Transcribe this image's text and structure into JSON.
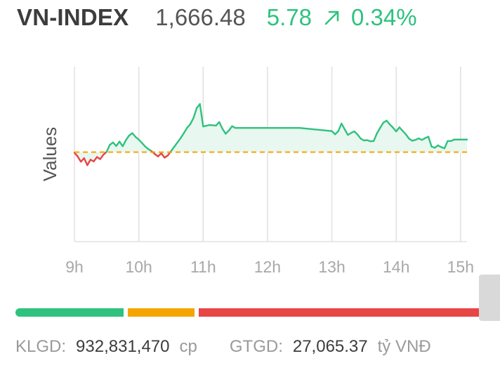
{
  "header": {
    "index_name": "VN-INDEX",
    "index_value": "1,666.48",
    "change": "5.78",
    "change_pct": "0.34%",
    "trend_icon": "arrow-up-right-icon"
  },
  "colors": {
    "up": "#2ec27e",
    "down": "#e84545",
    "reference": "#f5a500",
    "area_fill": "#e8f7ef",
    "grid": "#e0e0e0",
    "axis_text": "#a8a8a8"
  },
  "breadth": {
    "advancing_color": "#2ec27e",
    "unchanged_color": "#f5a500",
    "declining_color": "#e84545"
  },
  "chart_data": {
    "type": "line",
    "ylabel": "Values",
    "reference_value": 1660.7,
    "ylim": [
      1630,
      1690
    ],
    "x_ticks": [
      "9h",
      "10h",
      "11h",
      "12h",
      "13h",
      "14h",
      "15h"
    ],
    "x_tick_hours": [
      9,
      10,
      11,
      12,
      13,
      14,
      15
    ],
    "x_range": [
      9,
      15.1
    ],
    "grid": "vertical",
    "series": [
      {
        "x": [
          9.0,
          9.05,
          9.1,
          9.15,
          9.2,
          9.25,
          9.3,
          9.35,
          9.4,
          9.45,
          9.5,
          9.55,
          9.6,
          9.65,
          9.7,
          9.75,
          9.8,
          9.85,
          9.9,
          9.95,
          10.0,
          10.05,
          10.1,
          10.15,
          10.2,
          10.25,
          10.3,
          10.35,
          10.4,
          10.45,
          10.5,
          10.55,
          10.6,
          10.65,
          10.7,
          10.75,
          10.8,
          10.85,
          10.9,
          10.95,
          11.0,
          11.1,
          11.2,
          11.25,
          11.3,
          11.35,
          11.4,
          11.45,
          11.5,
          12.0,
          12.5,
          13.0,
          13.05,
          13.1,
          13.15,
          13.2,
          13.25,
          13.3,
          13.35,
          13.4,
          13.45,
          13.5,
          13.55,
          13.6,
          13.65,
          13.7,
          13.75,
          13.8,
          13.85,
          13.9,
          13.95,
          14.0,
          14.05,
          14.1,
          14.15,
          14.2,
          14.25,
          14.3,
          14.35,
          14.4,
          14.45,
          14.5,
          14.55,
          14.6,
          14.65,
          14.7,
          14.75,
          14.8,
          14.85,
          14.9,
          15.1
        ],
        "y": [
          1660.5,
          1659.2,
          1657.4,
          1658.6,
          1656.2,
          1658.1,
          1657.5,
          1659.0,
          1658.3,
          1659.8,
          1660.8,
          1663.2,
          1664.0,
          1662.8,
          1664.3,
          1662.7,
          1664.8,
          1666.4,
          1667.2,
          1665.9,
          1665.0,
          1663.8,
          1662.6,
          1661.7,
          1661.0,
          1660.0,
          1659.2,
          1660.3,
          1658.8,
          1659.5,
          1661.0,
          1662.5,
          1664.0,
          1665.5,
          1667.2,
          1669.0,
          1670.3,
          1672.4,
          1675.8,
          1677.2,
          1669.5,
          1670.0,
          1669.8,
          1671.0,
          1668.7,
          1667.0,
          1668.1,
          1669.6,
          1669.0,
          1669.0,
          1669.0,
          1667.9,
          1666.8,
          1667.9,
          1670.5,
          1668.5,
          1666.6,
          1667.3,
          1667.8,
          1666.7,
          1665.3,
          1664.7,
          1664.8,
          1664.4,
          1664.5,
          1667.1,
          1669.0,
          1670.8,
          1671.5,
          1670.2,
          1669.1,
          1667.8,
          1669.2,
          1668.0,
          1666.8,
          1665.3,
          1664.6,
          1664.9,
          1665.4,
          1664.9,
          1665.5,
          1666.0,
          1662.6,
          1662.2,
          1663.0,
          1662.4,
          1662.0,
          1664.5,
          1664.5,
          1665.0,
          1665.0
        ]
      }
    ]
  },
  "footer": {
    "klgd_label": "KLGD:",
    "klgd_value": "932,831,470",
    "klgd_unit": "cp",
    "gtgd_label": "GTGD:",
    "gtgd_value": "27,065.37",
    "gtgd_unit": "tỷ VNĐ"
  }
}
